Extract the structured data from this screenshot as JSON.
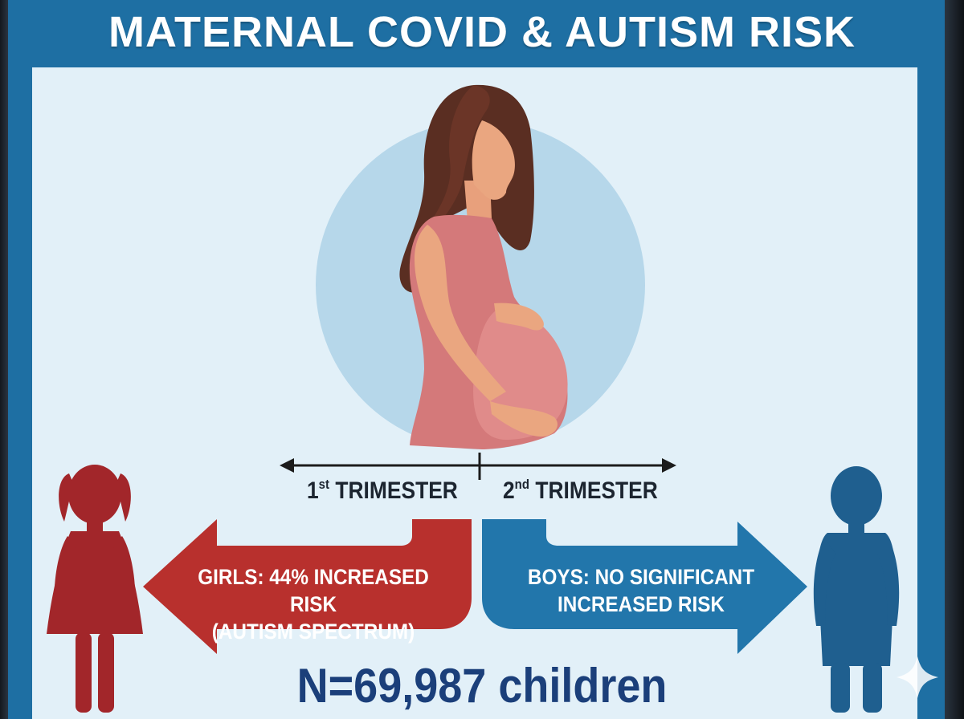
{
  "title": "MATERNAL COVID & AUTISM RISK",
  "timeline": {
    "first": {
      "ordinal": "1",
      "suffix": "st",
      "label": "TRIMESTER"
    },
    "second": {
      "ordinal": "2",
      "suffix": "nd",
      "label": "TRIMESTER"
    }
  },
  "girls": {
    "line1": "GIRLS: 44% INCREASED RISK",
    "line2": "(AUTISM SPECTRUM)"
  },
  "boys": {
    "line1": "BOYS: NO SIGNIFICANT",
    "line2": "INCREASED RISK"
  },
  "sample": "N=69,987 children",
  "colors": {
    "header": "#1e6fa3",
    "panel": "#e2f0f8",
    "circle": "#b6d7ea",
    "girls": "#b8302d",
    "girl_figure": "#a2262a",
    "boys": "#2276ab",
    "boy_figure": "#1f5f8f",
    "sample_text": "#1b3f7a"
  },
  "icons": [
    "pregnant-woman-illustration",
    "girl-silhouette-icon",
    "boy-silhouette-icon",
    "sparkle-icon"
  ]
}
